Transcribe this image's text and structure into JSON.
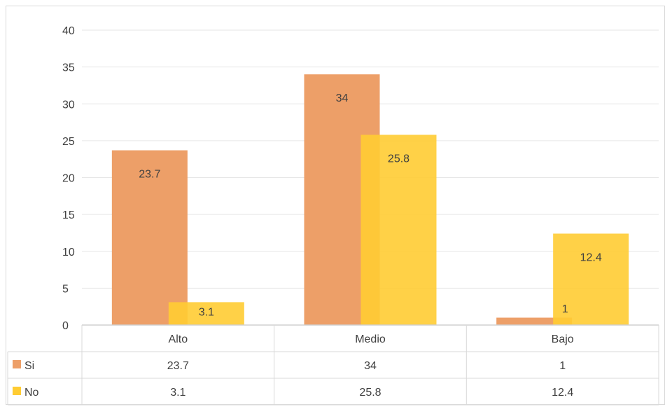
{
  "chart_data": {
    "type": "bar",
    "categories": [
      "Alto",
      "Medio",
      "Bajo"
    ],
    "series": [
      {
        "name": "Si",
        "values": [
          23.7,
          34,
          1
        ],
        "color": "#ED9F68"
      },
      {
        "name": "No",
        "values": [
          3.1,
          25.8,
          12.4
        ],
        "color": "#FFCC33"
      }
    ],
    "yticks": [
      "0",
      "5",
      "10",
      "15",
      "20",
      "25",
      "30",
      "35",
      "40"
    ],
    "ylim": [
      0,
      40
    ],
    "grid": true,
    "legend": "data-table",
    "value_labels": {
      "Si": [
        "23.7",
        "34",
        "1"
      ],
      "No": [
        "3.1",
        "25.8",
        "12.4"
      ]
    }
  }
}
